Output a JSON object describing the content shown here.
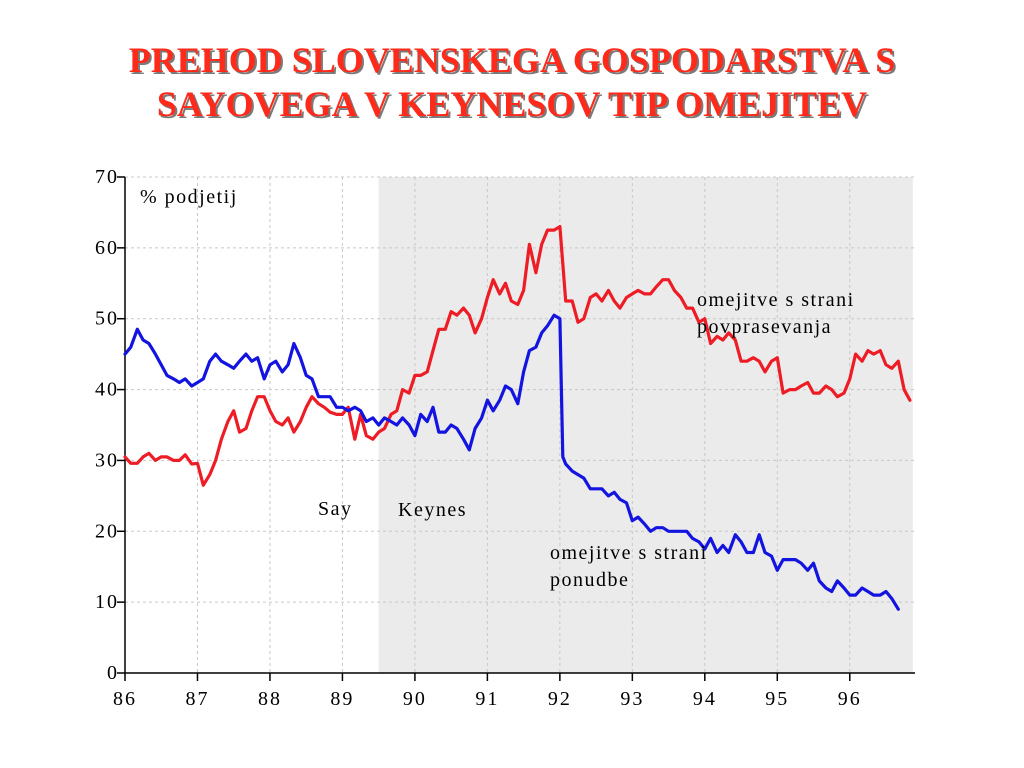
{
  "slide": {
    "title_line1": "PREHOD SLOVENSKEGA GOSPODARSTVA S",
    "title_line2": "SAYOVEGA V KEYNESOV TIP OMEJITEV"
  },
  "colors": {
    "title": "#ff2a1a",
    "demand_series": "#ee1c25",
    "supply_series": "#1414e0",
    "keynes_shade": "#ebebeb"
  },
  "chart_data": {
    "type": "line",
    "title": "",
    "xlabel": "",
    "ylabel": "% podjetij",
    "xlim": [
      86,
      96.9
    ],
    "ylim": [
      0,
      70
    ],
    "x_ticks": [
      86,
      87,
      88,
      89,
      90,
      91,
      92,
      93,
      94,
      95,
      96
    ],
    "x_tick_labels": [
      "86",
      "87",
      "88",
      "89",
      "90",
      "91",
      "92",
      "93",
      "94",
      "95",
      "96"
    ],
    "y_ticks": [
      0,
      10,
      20,
      30,
      40,
      50,
      60,
      70
    ],
    "y_tick_labels": [
      "0",
      "10",
      "20",
      "30",
      "40",
      "50",
      "60",
      "70"
    ],
    "grid": true,
    "regions": [
      {
        "label": "Say",
        "from": 86,
        "to": 89.5
      },
      {
        "label": "Keynes",
        "from": 89.5,
        "to": 96.87,
        "shaded": true
      }
    ],
    "series": [
      {
        "name": "omejitve s strani povprasevanja",
        "label_lines": [
          "omejitve s strani",
          "povprasevanja"
        ],
        "color": "#ee1c25",
        "points": [
          [
            86.0,
            30.5
          ],
          [
            86.08,
            29.6
          ],
          [
            86.17,
            29.6
          ],
          [
            86.25,
            30.5
          ],
          [
            86.33,
            31.0
          ],
          [
            86.42,
            30.0
          ],
          [
            86.5,
            30.5
          ],
          [
            86.58,
            30.5
          ],
          [
            86.67,
            30.0
          ],
          [
            86.75,
            30.0
          ],
          [
            86.83,
            30.8
          ],
          [
            86.92,
            29.5
          ],
          [
            87.0,
            29.6
          ],
          [
            87.08,
            26.5
          ],
          [
            87.17,
            28.0
          ],
          [
            87.25,
            30.0
          ],
          [
            87.33,
            33.0
          ],
          [
            87.42,
            35.5
          ],
          [
            87.5,
            37.0
          ],
          [
            87.58,
            34.0
          ],
          [
            87.67,
            34.5
          ],
          [
            87.75,
            37.0
          ],
          [
            87.83,
            39.0
          ],
          [
            87.92,
            39.0
          ],
          [
            88.0,
            37.0
          ],
          [
            88.08,
            35.5
          ],
          [
            88.17,
            35.0
          ],
          [
            88.25,
            36.0
          ],
          [
            88.33,
            34.0
          ],
          [
            88.42,
            35.5
          ],
          [
            88.5,
            37.5
          ],
          [
            88.58,
            39.0
          ],
          [
            88.67,
            38.0
          ],
          [
            88.75,
            37.5
          ],
          [
            88.83,
            36.8
          ],
          [
            88.92,
            36.5
          ],
          [
            89.0,
            36.5
          ],
          [
            89.08,
            37.5
          ],
          [
            89.17,
            33.0
          ],
          [
            89.25,
            36.5
          ],
          [
            89.33,
            33.5
          ],
          [
            89.42,
            33.0
          ],
          [
            89.5,
            34.0
          ],
          [
            89.58,
            34.5
          ],
          [
            89.67,
            36.5
          ],
          [
            89.75,
            37.0
          ],
          [
            89.83,
            40.0
          ],
          [
            89.92,
            39.5
          ],
          [
            90.0,
            42.0
          ],
          [
            90.08,
            42.0
          ],
          [
            90.17,
            42.5
          ],
          [
            90.25,
            45.5
          ],
          [
            90.33,
            48.5
          ],
          [
            90.42,
            48.5
          ],
          [
            90.5,
            51.0
          ],
          [
            90.58,
            50.5
          ],
          [
            90.67,
            51.5
          ],
          [
            90.75,
            50.5
          ],
          [
            90.83,
            48.0
          ],
          [
            90.92,
            50.0
          ],
          [
            91.0,
            53.0
          ],
          [
            91.08,
            55.5
          ],
          [
            91.17,
            53.5
          ],
          [
            91.25,
            55.0
          ],
          [
            91.33,
            52.5
          ],
          [
            91.42,
            52.0
          ],
          [
            91.5,
            54.0
          ],
          [
            91.58,
            60.5
          ],
          [
            91.67,
            56.5
          ],
          [
            91.75,
            60.5
          ],
          [
            91.83,
            62.5
          ],
          [
            91.92,
            62.5
          ],
          [
            92.0,
            63.0
          ],
          [
            92.08,
            52.5
          ],
          [
            92.17,
            52.5
          ],
          [
            92.25,
            49.5
          ],
          [
            92.33,
            50.0
          ],
          [
            92.42,
            53.0
          ],
          [
            92.5,
            53.5
          ],
          [
            92.58,
            52.5
          ],
          [
            92.67,
            54.0
          ],
          [
            92.75,
            52.5
          ],
          [
            92.83,
            51.5
          ],
          [
            92.92,
            53.0
          ],
          [
            93.0,
            53.5
          ],
          [
            93.08,
            54.0
          ],
          [
            93.17,
            53.5
          ],
          [
            93.25,
            53.5
          ],
          [
            93.33,
            54.5
          ],
          [
            93.42,
            55.5
          ],
          [
            93.5,
            55.5
          ],
          [
            93.58,
            54.0
          ],
          [
            93.67,
            53.0
          ],
          [
            93.75,
            51.5
          ],
          [
            93.83,
            51.5
          ],
          [
            93.92,
            49.5
          ],
          [
            94.0,
            50.0
          ],
          [
            94.08,
            46.5
          ],
          [
            94.17,
            47.5
          ],
          [
            94.25,
            47.0
          ],
          [
            94.33,
            48.0
          ],
          [
            94.42,
            47.0
          ],
          [
            94.5,
            44.0
          ],
          [
            94.58,
            44.0
          ],
          [
            94.67,
            44.5
          ],
          [
            94.75,
            44.0
          ],
          [
            94.83,
            42.5
          ],
          [
            94.92,
            44.0
          ],
          [
            95.0,
            44.5
          ],
          [
            95.08,
            39.5
          ],
          [
            95.17,
            40.0
          ],
          [
            95.25,
            40.0
          ],
          [
            95.33,
            40.5
          ],
          [
            95.42,
            41.0
          ],
          [
            95.5,
            39.5
          ],
          [
            95.58,
            39.5
          ],
          [
            95.67,
            40.5
          ],
          [
            95.75,
            40.0
          ],
          [
            95.83,
            39.0
          ],
          [
            95.92,
            39.5
          ],
          [
            96.0,
            41.5
          ],
          [
            96.08,
            45.0
          ],
          [
            96.17,
            44.0
          ],
          [
            96.25,
            45.5
          ],
          [
            96.33,
            45.0
          ],
          [
            96.42,
            45.5
          ],
          [
            96.5,
            43.5
          ],
          [
            96.58,
            43.0
          ],
          [
            96.67,
            44.0
          ],
          [
            96.75,
            40.0
          ],
          [
            96.83,
            38.5
          ]
        ]
      },
      {
        "name": "omejitve s strani ponudbe",
        "label_lines": [
          "omejitve s strani",
          "ponudbe"
        ],
        "color": "#1414e0",
        "points": [
          [
            86.0,
            45.0
          ],
          [
            86.08,
            46.0
          ],
          [
            86.17,
            48.5
          ],
          [
            86.25,
            47.0
          ],
          [
            86.33,
            46.5
          ],
          [
            86.42,
            45.0
          ],
          [
            86.5,
            43.5
          ],
          [
            86.58,
            42.0
          ],
          [
            86.67,
            41.5
          ],
          [
            86.75,
            41.0
          ],
          [
            86.83,
            41.5
          ],
          [
            86.92,
            40.5
          ],
          [
            87.0,
            41.0
          ],
          [
            87.08,
            41.5
          ],
          [
            87.17,
            44.0
          ],
          [
            87.25,
            45.0
          ],
          [
            87.33,
            44.0
          ],
          [
            87.42,
            43.5
          ],
          [
            87.5,
            43.0
          ],
          [
            87.58,
            44.0
          ],
          [
            87.67,
            45.0
          ],
          [
            87.75,
            44.0
          ],
          [
            87.83,
            44.5
          ],
          [
            87.92,
            41.5
          ],
          [
            88.0,
            43.5
          ],
          [
            88.08,
            44.0
          ],
          [
            88.17,
            42.5
          ],
          [
            88.25,
            43.5
          ],
          [
            88.33,
            46.5
          ],
          [
            88.42,
            44.5
          ],
          [
            88.5,
            42.0
          ],
          [
            88.58,
            41.5
          ],
          [
            88.67,
            39.0
          ],
          [
            88.75,
            39.0
          ],
          [
            88.83,
            39.0
          ],
          [
            88.92,
            37.5
          ],
          [
            89.0,
            37.5
          ],
          [
            89.08,
            37.0
          ],
          [
            89.17,
            37.5
          ],
          [
            89.25,
            37.0
          ],
          [
            89.33,
            35.5
          ],
          [
            89.42,
            36.0
          ],
          [
            89.5,
            35.0
          ],
          [
            89.58,
            36.0
          ],
          [
            89.67,
            35.5
          ],
          [
            89.75,
            35.0
          ],
          [
            89.83,
            36.0
          ],
          [
            89.92,
            35.0
          ],
          [
            90.0,
            33.5
          ],
          [
            90.08,
            36.5
          ],
          [
            90.17,
            35.5
          ],
          [
            90.25,
            37.5
          ],
          [
            90.33,
            34.0
          ],
          [
            90.42,
            34.0
          ],
          [
            90.5,
            35.0
          ],
          [
            90.58,
            34.5
          ],
          [
            90.67,
            33.0
          ],
          [
            90.75,
            31.5
          ],
          [
            90.83,
            34.5
          ],
          [
            90.92,
            36.0
          ],
          [
            91.0,
            38.5
          ],
          [
            91.08,
            37.0
          ],
          [
            91.17,
            38.5
          ],
          [
            91.25,
            40.5
          ],
          [
            91.33,
            40.0
          ],
          [
            91.42,
            38.0
          ],
          [
            91.5,
            42.5
          ],
          [
            91.58,
            45.5
          ],
          [
            91.67,
            46.0
          ],
          [
            91.75,
            48.0
          ],
          [
            91.83,
            49.0
          ],
          [
            91.92,
            50.5
          ],
          [
            92.0,
            50.0
          ],
          [
            92.04,
            30.5
          ],
          [
            92.08,
            29.5
          ],
          [
            92.17,
            28.5
          ],
          [
            92.25,
            28.0
          ],
          [
            92.33,
            27.5
          ],
          [
            92.42,
            26.0
          ],
          [
            92.5,
            26.0
          ],
          [
            92.58,
            26.0
          ],
          [
            92.67,
            25.0
          ],
          [
            92.75,
            25.5
          ],
          [
            92.83,
            24.5
          ],
          [
            92.92,
            24.0
          ],
          [
            93.0,
            21.5
          ],
          [
            93.08,
            22.0
          ],
          [
            93.17,
            21.0
          ],
          [
            93.25,
            20.0
          ],
          [
            93.33,
            20.5
          ],
          [
            93.42,
            20.5
          ],
          [
            93.5,
            20.0
          ],
          [
            93.58,
            20.0
          ],
          [
            93.67,
            20.0
          ],
          [
            93.75,
            20.0
          ],
          [
            93.83,
            19.0
          ],
          [
            93.92,
            18.5
          ],
          [
            94.0,
            17.5
          ],
          [
            94.08,
            19.0
          ],
          [
            94.17,
            17.0
          ],
          [
            94.25,
            18.0
          ],
          [
            94.33,
            17.0
          ],
          [
            94.42,
            19.5
          ],
          [
            94.5,
            18.5
          ],
          [
            94.58,
            17.0
          ],
          [
            94.67,
            17.0
          ],
          [
            94.75,
            19.5
          ],
          [
            94.83,
            17.0
          ],
          [
            94.92,
            16.5
          ],
          [
            95.0,
            14.5
          ],
          [
            95.08,
            16.0
          ],
          [
            95.17,
            16.0
          ],
          [
            95.25,
            16.0
          ],
          [
            95.33,
            15.5
          ],
          [
            95.42,
            14.5
          ],
          [
            95.5,
            15.5
          ],
          [
            95.58,
            13.0
          ],
          [
            95.67,
            12.0
          ],
          [
            95.75,
            11.5
          ],
          [
            95.83,
            13.0
          ],
          [
            95.92,
            12.0
          ],
          [
            96.0,
            11.0
          ],
          [
            96.08,
            11.0
          ],
          [
            96.17,
            12.0
          ],
          [
            96.25,
            11.5
          ],
          [
            96.33,
            11.0
          ],
          [
            96.42,
            11.0
          ],
          [
            96.5,
            11.5
          ],
          [
            96.58,
            10.5
          ],
          [
            96.67,
            9.0
          ]
        ]
      }
    ]
  }
}
